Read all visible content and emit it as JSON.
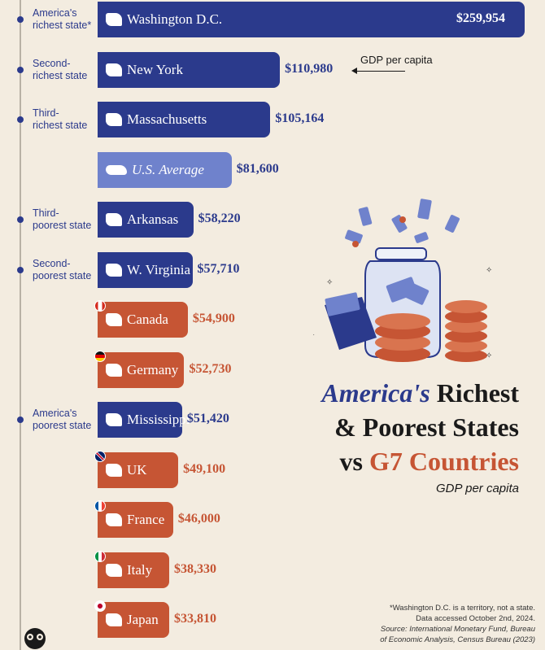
{
  "chart_data": {
    "type": "bar",
    "orientation": "horizontal",
    "title_parts": [
      "America's",
      "Richest",
      "& Poorest States",
      "vs",
      "G7 Countries"
    ],
    "subtitle": "GDP per capita",
    "annotation": "GDP per capita",
    "xlim": [
      0,
      259954
    ],
    "bars": [
      {
        "name": "Washington D.C.",
        "value": 259954,
        "label": "$259,954",
        "kind": "state",
        "side_label": "America's\nrichest state*",
        "icon": "dc-shape-icon"
      },
      {
        "name": "New York",
        "value": 110980,
        "label": "$110,980",
        "kind": "state",
        "side_label": "Second-\nrichest state",
        "icon": "new-york-shape-icon"
      },
      {
        "name": "Massachusetts",
        "value": 105164,
        "label": "$105,164",
        "kind": "state",
        "side_label": "Third-\nrichest state",
        "icon": "massachusetts-shape-icon"
      },
      {
        "name": "U.S. Average",
        "value": 81600,
        "label": "$81,600",
        "kind": "avg",
        "side_label": "",
        "icon": "usa-shape-icon"
      },
      {
        "name": "Arkansas",
        "value": 58220,
        "label": "$58,220",
        "kind": "state",
        "side_label": "Third-\npoorest state",
        "icon": "arkansas-shape-icon"
      },
      {
        "name": "W. Virginia",
        "value": 57710,
        "label": "$57,710",
        "kind": "state",
        "side_label": "Second-\npoorest state",
        "icon": "west-virginia-shape-icon"
      },
      {
        "name": "Canada",
        "value": 54900,
        "label": "$54,900",
        "kind": "country",
        "side_label": "",
        "icon": "canada-flag-icon"
      },
      {
        "name": "Germany",
        "value": 52730,
        "label": "$52,730",
        "kind": "country",
        "side_label": "",
        "icon": "germany-flag-icon"
      },
      {
        "name": "Mississippi",
        "value": 51420,
        "label": "$51,420",
        "kind": "state",
        "side_label": "America's\npoorest state",
        "icon": "mississippi-shape-icon"
      },
      {
        "name": "UK",
        "value": 49100,
        "label": "$49,100",
        "kind": "country",
        "side_label": "",
        "icon": "uk-flag-icon"
      },
      {
        "name": "France",
        "value": 46000,
        "label": "$46,000",
        "kind": "country",
        "side_label": "",
        "icon": "france-flag-icon"
      },
      {
        "name": "Italy",
        "value": 38330,
        "label": "$38,330",
        "kind": "country",
        "side_label": "",
        "icon": "italy-flag-icon"
      },
      {
        "name": "Japan",
        "value": 33810,
        "label": "$33,810",
        "kind": "country",
        "side_label": "",
        "icon": "japan-flag-icon"
      }
    ]
  },
  "footnotes": {
    "line1": "*Washington D.C. is a territory, not a state.",
    "line2": "Data accessed October 2nd, 2024.",
    "line3": "Source: International Monetary Fund, Bureau",
    "line4": "of Economic Analysis, Census Bureau (2023)"
  },
  "colors": {
    "state": "#2b3a8c",
    "average": "#6f82cc",
    "country": "#c65534",
    "background": "#f3ece0"
  },
  "icons": {
    "illustration": "money-jar-illustration",
    "logo": "visual-capitalist-logo-icon"
  }
}
